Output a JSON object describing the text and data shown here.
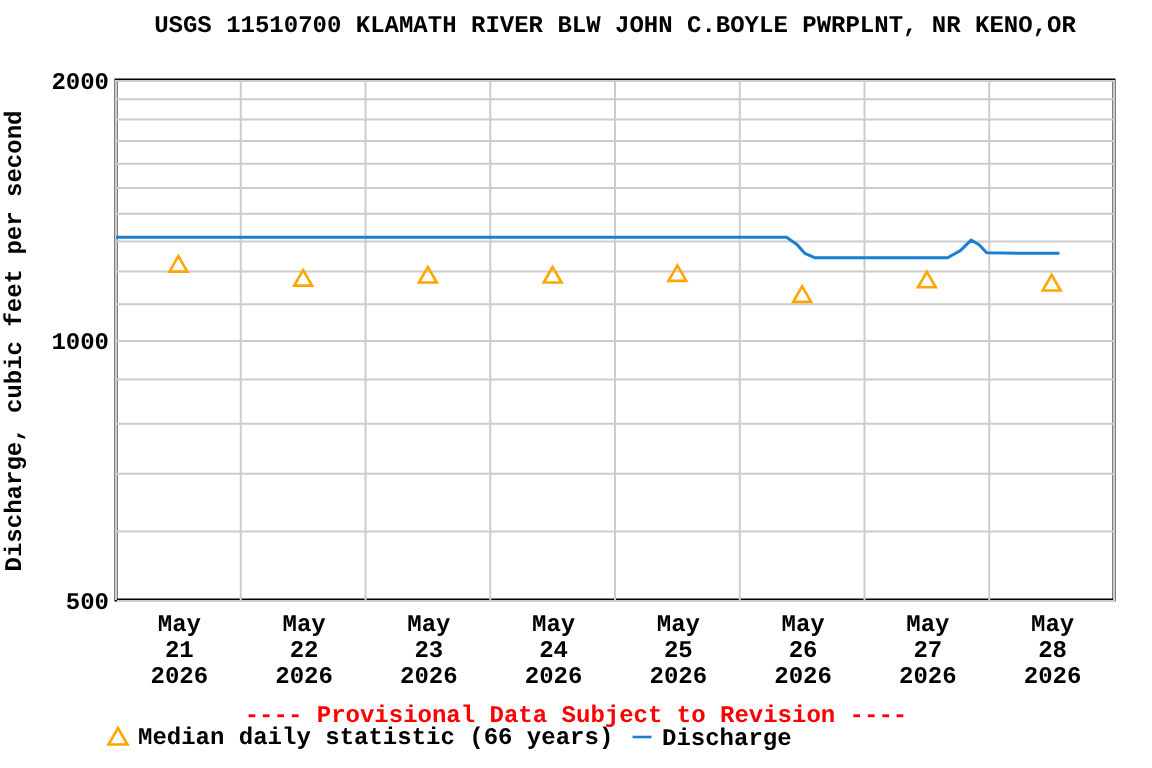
{
  "chart_data": {
    "type": "line",
    "title": "USGS 11510700 KLAMATH RIVER BLW JOHN C.BOYLE PWRPLNT, NR KENO,OR",
    "ylabel": "Discharge, cubic feet per second",
    "annotations": [
      "---- Provisional Data Subject to Revision ----"
    ],
    "log": "y",
    "grid": true,
    "legend": "bottom left",
    "xlim": [
      "2026-05-21T00:00",
      "2026-05-29T00:00"
    ],
    "xticks": [
      {
        "value": "2026-05-21T00:00",
        "label": null
      },
      {
        "value": "2026-05-21T12:00",
        "label": "May 21 2026"
      },
      {
        "value": "2026-05-22T00:00",
        "label": null
      },
      {
        "value": "2026-05-22T12:00",
        "label": "May 22 2026"
      },
      {
        "value": "2026-05-23T00:00",
        "label": null
      },
      {
        "value": "2026-05-23T12:00",
        "label": "May 23 2026"
      },
      {
        "value": "2026-05-24T00:00",
        "label": null
      },
      {
        "value": "2026-05-24T12:00",
        "label": "May 24 2026"
      },
      {
        "value": "2026-05-25T00:00",
        "label": null
      },
      {
        "value": "2026-05-25T12:00",
        "label": "May 25 2026"
      },
      {
        "value": "2026-05-26T00:00",
        "label": null
      },
      {
        "value": "2026-05-26T12:00",
        "label": "May 26 2026"
      },
      {
        "value": "2026-05-27T00:00",
        "label": null
      },
      {
        "value": "2026-05-27T12:00",
        "label": "May 27 2026"
      },
      {
        "value": "2026-05-28T00:00",
        "label": null
      },
      {
        "value": "2026-05-28T12:00",
        "label": "May 28 2026"
      },
      {
        "value": "2026-05-29T00:00",
        "label": null
      }
    ],
    "ylim": [
      500,
      2000
    ],
    "yticks": [
      500,
      {
        "value": 600,
        "label": null
      },
      {
        "value": 700,
        "label": null
      },
      {
        "value": 800,
        "label": null
      },
      {
        "value": 900,
        "label": null
      },
      1000,
      {
        "value": 1100,
        "label": null
      },
      {
        "value": 1200,
        "label": null
      },
      {
        "value": 1300,
        "label": null
      },
      {
        "value": 1400,
        "label": null
      },
      {
        "value": 1500,
        "label": null
      },
      {
        "value": 1600,
        "label": null
      },
      {
        "value": 1700,
        "label": null
      },
      {
        "value": 1800,
        "label": null
      },
      {
        "value": 1900,
        "label": null
      },
      2000
    ],
    "series": [
      {
        "name": "Median daily statistic (66 years)",
        "type": "scatter",
        "marker": "triangle",
        "color": "#ffa500",
        "x": [
          "2026-05-21T12:00",
          "2026-05-22T12:00",
          "2026-05-23T12:00",
          "2026-05-24T12:00",
          "2026-05-25T12:00",
          "2026-05-26T12:00",
          "2026-05-27T12:00",
          "2026-05-28T12:00"
        ],
        "values": [
          1225,
          1180,
          1190,
          1190,
          1195,
          1130,
          1175,
          1165
        ]
      },
      {
        "name": "Discharge",
        "type": "line",
        "color": "#1a7fd0",
        "x": [
          "2026-05-21T00:00",
          "2026-05-22T00:00",
          "2026-05-23T00:00",
          "2026-05-24T00:00",
          "2026-05-25T00:00",
          "2026-05-26T00:00",
          "2026-05-26T09:00",
          "2026-05-26T11:00",
          "2026-05-26T12:30",
          "2026-05-26T14:30",
          "2026-05-27T00:00",
          "2026-05-27T16:00",
          "2026-05-27T18:30",
          "2026-05-27T20:30",
          "2026-05-27T22:00",
          "2026-05-27T23:30",
          "2026-05-28T06:00",
          "2026-05-28T13:30"
        ],
        "values": [
          1315,
          1315,
          1315,
          1315,
          1315,
          1315,
          1315,
          1290,
          1260,
          1245,
          1245,
          1245,
          1270,
          1305,
          1290,
          1262,
          1260,
          1260
        ]
      }
    ]
  }
}
